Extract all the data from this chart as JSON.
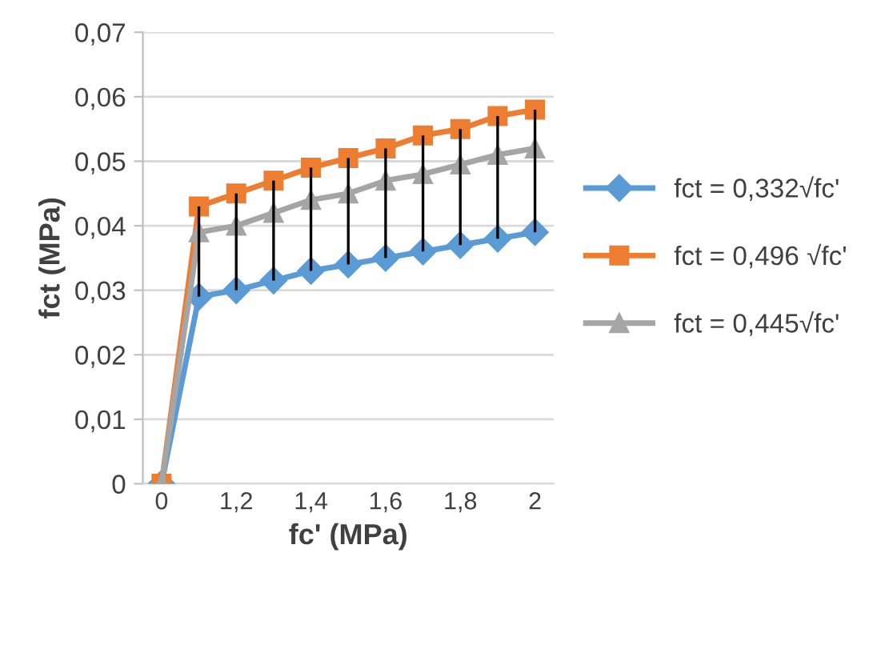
{
  "chart_data": {
    "type": "line",
    "xlabel": "fc' (MPa)",
    "ylabel": "fct (MPa)",
    "categories": [
      "0",
      null,
      "1,2",
      null,
      "1,4",
      null,
      "1,6",
      null,
      "1,8",
      null,
      "2"
    ],
    "ylim": [
      0,
      0.07
    ],
    "yticks": [
      {
        "value": 0,
        "label": "0"
      },
      {
        "value": 0.01,
        "label": "0,01"
      },
      {
        "value": 0.02,
        "label": "0,02"
      },
      {
        "value": 0.03,
        "label": "0,03"
      },
      {
        "value": 0.04,
        "label": "0,04"
      },
      {
        "value": 0.05,
        "label": "0,05"
      },
      {
        "value": 0.06,
        "label": "0,06"
      },
      {
        "value": 0.07,
        "label": "0,07"
      }
    ],
    "grid": "y",
    "legend": "right",
    "series": [
      {
        "name": "fct = 0,332√fc'",
        "color": "#5b9bd5",
        "marker": "diamond",
        "values": [
          0,
          0.029,
          0.03,
          0.0315,
          0.033,
          0.034,
          0.035,
          0.036,
          0.037,
          0.038,
          0.039
        ]
      },
      {
        "name": "fct = 0,496 √fc'",
        "color": "#ed7d31",
        "marker": "square",
        "values": [
          0,
          0.043,
          0.045,
          0.047,
          0.049,
          0.0505,
          0.052,
          0.054,
          0.055,
          0.057,
          0.058
        ]
      },
      {
        "name": "fct = 0,445√fc'",
        "color": "#a5a5a5",
        "marker": "triangle",
        "values": [
          0,
          0.039,
          0.04,
          0.042,
          0.044,
          0.045,
          0.047,
          0.048,
          0.0495,
          0.051,
          0.052
        ],
        "errors": [
          null,
          [
            0.029,
            0.043
          ],
          [
            0.03,
            0.045
          ],
          [
            0.0315,
            0.047
          ],
          [
            0.033,
            0.049
          ],
          [
            0.034,
            0.0505
          ],
          [
            0.035,
            0.052
          ],
          [
            0.036,
            0.054
          ],
          [
            0.037,
            0.055
          ],
          [
            0.038,
            0.057
          ],
          [
            0.039,
            0.058
          ]
        ]
      }
    ]
  }
}
